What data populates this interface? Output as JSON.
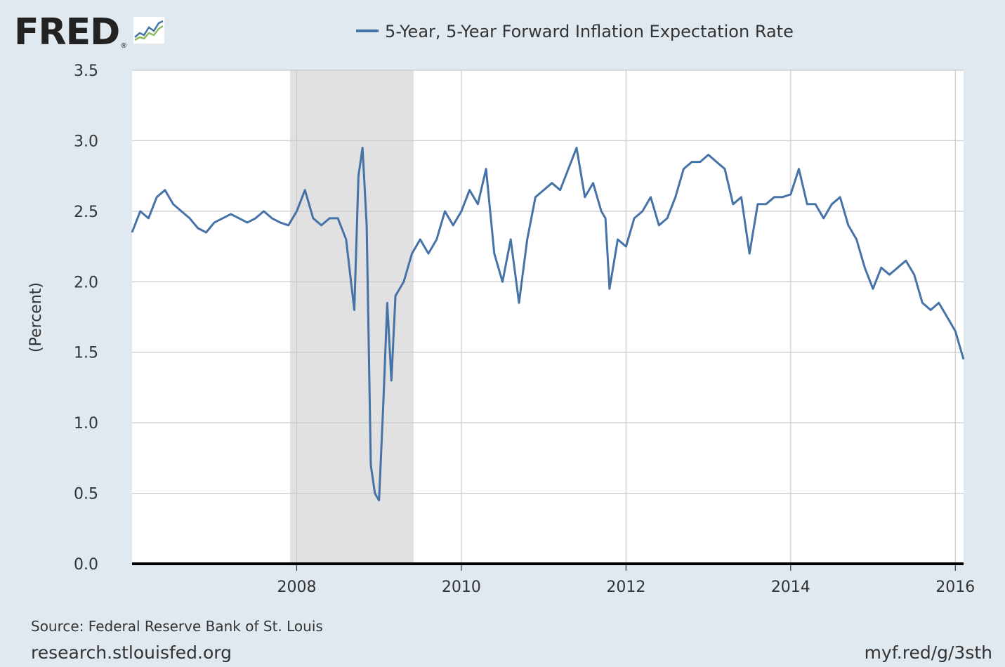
{
  "logo": {
    "text": "FRED",
    "reg": "®",
    "icon": "fred-line-chart-icon"
  },
  "footer": {
    "source": "Source: Federal Reserve Bank of St. Louis",
    "site": "research.stlouisfed.org",
    "short_link": "myf.red/g/3sth"
  },
  "colors": {
    "line": "#4572a7",
    "background": "#e1e9f0",
    "plot": "#ffffff",
    "recession": "#e1e1e1",
    "grid": "#c9c9c9"
  },
  "chart_data": {
    "type": "line",
    "title": "",
    "legend": {
      "label": "5-Year, 5-Year Forward Inflation Expectation Rate",
      "placement": "top-center"
    },
    "xlabel": "",
    "ylabel": "(Percent)",
    "xlim": [
      2006.0,
      2016.1
    ],
    "ylim": [
      0,
      3.5
    ],
    "x_ticks": [
      "2008",
      "2010",
      "2012",
      "2014",
      "2016"
    ],
    "y_ticks": [
      "0.0",
      "0.5",
      "1.0",
      "1.5",
      "2.0",
      "2.5",
      "3.0",
      "3.5"
    ],
    "grid": true,
    "recession_bands": [
      [
        2007.92,
        2009.42
      ]
    ],
    "series": [
      {
        "name": "5-Year, 5-Year Forward Inflation Expectation Rate",
        "x": [
          2006.0,
          2006.1,
          2006.2,
          2006.3,
          2006.4,
          2006.5,
          2006.6,
          2006.7,
          2006.8,
          2006.9,
          2007.0,
          2007.1,
          2007.2,
          2007.3,
          2007.4,
          2007.5,
          2007.6,
          2007.7,
          2007.8,
          2007.9,
          2008.0,
          2008.1,
          2008.2,
          2008.3,
          2008.4,
          2008.5,
          2008.6,
          2008.7,
          2008.75,
          2008.8,
          2008.85,
          2008.9,
          2008.95,
          2009.0,
          2009.05,
          2009.1,
          2009.15,
          2009.2,
          2009.3,
          2009.4,
          2009.5,
          2009.6,
          2009.7,
          2009.8,
          2009.9,
          2010.0,
          2010.1,
          2010.2,
          2010.3,
          2010.4,
          2010.5,
          2010.6,
          2010.7,
          2010.8,
          2010.9,
          2011.0,
          2011.1,
          2011.2,
          2011.3,
          2011.4,
          2011.5,
          2011.6,
          2011.7,
          2011.75,
          2011.8,
          2011.9,
          2012.0,
          2012.1,
          2012.2,
          2012.3,
          2012.4,
          2012.5,
          2012.6,
          2012.7,
          2012.8,
          2012.9,
          2013.0,
          2013.1,
          2013.2,
          2013.3,
          2013.4,
          2013.5,
          2013.6,
          2013.7,
          2013.8,
          2013.9,
          2014.0,
          2014.1,
          2014.2,
          2014.3,
          2014.4,
          2014.5,
          2014.6,
          2014.7,
          2014.8,
          2014.9,
          2015.0,
          2015.1,
          2015.2,
          2015.3,
          2015.4,
          2015.5,
          2015.6,
          2015.7,
          2015.8,
          2015.9,
          2016.0,
          2016.05,
          2016.1
        ],
        "values": [
          2.35,
          2.5,
          2.45,
          2.6,
          2.65,
          2.55,
          2.5,
          2.45,
          2.38,
          2.35,
          2.42,
          2.45,
          2.48,
          2.45,
          2.42,
          2.45,
          2.5,
          2.45,
          2.42,
          2.4,
          2.5,
          2.65,
          2.45,
          2.4,
          2.45,
          2.45,
          2.3,
          1.8,
          2.75,
          2.95,
          2.4,
          0.7,
          0.5,
          0.45,
          1.1,
          1.85,
          1.3,
          1.9,
          2.0,
          2.2,
          2.3,
          2.2,
          2.3,
          2.5,
          2.4,
          2.5,
          2.65,
          2.55,
          2.8,
          2.2,
          2.0,
          2.3,
          1.85,
          2.3,
          2.6,
          2.65,
          2.7,
          2.65,
          2.8,
          2.95,
          2.6,
          2.7,
          2.5,
          2.45,
          1.95,
          2.3,
          2.25,
          2.45,
          2.5,
          2.6,
          2.4,
          2.45,
          2.6,
          2.8,
          2.85,
          2.85,
          2.9,
          2.85,
          2.8,
          2.55,
          2.6,
          2.2,
          2.55,
          2.55,
          2.6,
          2.6,
          2.62,
          2.8,
          2.55,
          2.55,
          2.45,
          2.55,
          2.6,
          2.4,
          2.3,
          2.1,
          1.95,
          2.1,
          2.05,
          2.1,
          2.15,
          2.05,
          1.85,
          1.8,
          1.85,
          1.75,
          1.65,
          1.55,
          1.45
        ]
      }
    ]
  }
}
